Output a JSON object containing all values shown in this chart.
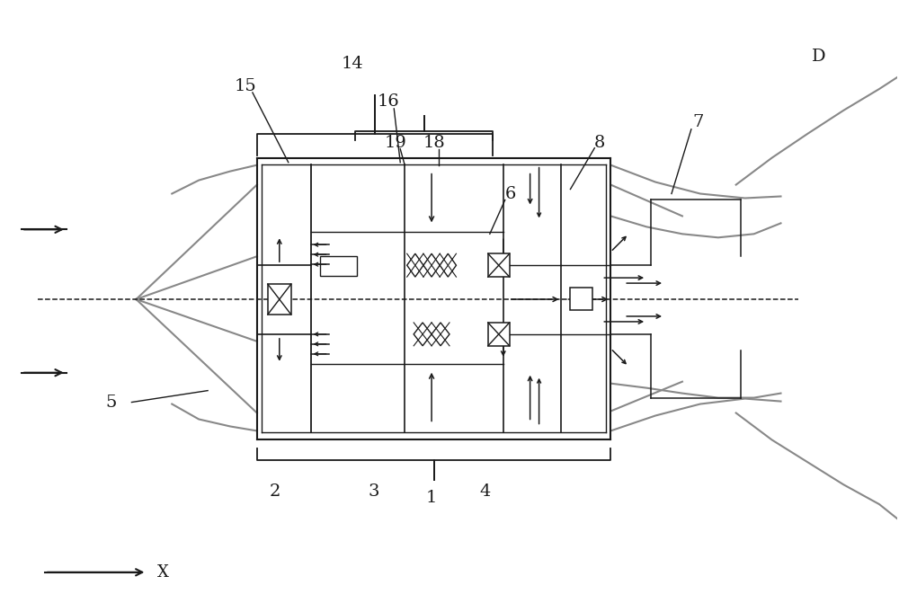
{
  "bg": "#ffffff",
  "lc": "#1a1a1a",
  "gc": "#888888",
  "fig_w": 10.0,
  "fig_h": 6.81,
  "dpi": 100
}
